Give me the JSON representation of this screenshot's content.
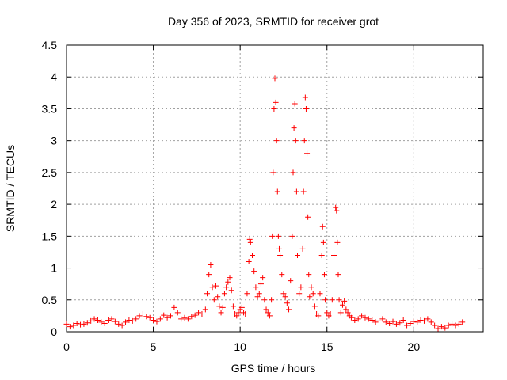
{
  "chart_data": {
    "type": "scatter",
    "title": "Day 356 of 2023, SRMTID for receiver grot",
    "xlabel": "GPS time / hours",
    "ylabel": "SRMTID / TECUs",
    "xlim": [
      0,
      24
    ],
    "ylim": [
      0,
      4.5
    ],
    "x_ticks": [
      0,
      5,
      10,
      15,
      20
    ],
    "x_tick_labels": [
      "0",
      "5",
      "10",
      "15",
      "20"
    ],
    "y_ticks": [
      0,
      0.5,
      1,
      1.5,
      2,
      2.5,
      3,
      3.5,
      4,
      4.5
    ],
    "y_tick_labels": [
      "0",
      "0.5",
      "1",
      "1.5",
      "2",
      "2.5",
      "3",
      "3.5",
      "4",
      "4.5"
    ],
    "grid": true,
    "marker": "+",
    "marker_color": "#ff0000",
    "series": [
      {
        "name": "SRMTID",
        "points": [
          [
            0.0,
            0.12
          ],
          [
            0.2,
            0.08
          ],
          [
            0.4,
            0.1
          ],
          [
            0.6,
            0.13
          ],
          [
            0.8,
            0.11
          ],
          [
            1.0,
            0.12
          ],
          [
            1.2,
            0.14
          ],
          [
            1.4,
            0.17
          ],
          [
            1.6,
            0.2
          ],
          [
            1.8,
            0.18
          ],
          [
            2.0,
            0.15
          ],
          [
            2.2,
            0.13
          ],
          [
            2.4,
            0.18
          ],
          [
            2.6,
            0.2
          ],
          [
            2.8,
            0.16
          ],
          [
            3.0,
            0.12
          ],
          [
            3.2,
            0.1
          ],
          [
            3.4,
            0.15
          ],
          [
            3.6,
            0.18
          ],
          [
            3.8,
            0.17
          ],
          [
            4.0,
            0.2
          ],
          [
            4.2,
            0.25
          ],
          [
            4.4,
            0.28
          ],
          [
            4.6,
            0.24
          ],
          [
            4.8,
            0.22
          ],
          [
            5.0,
            0.18
          ],
          [
            5.2,
            0.16
          ],
          [
            5.4,
            0.2
          ],
          [
            5.6,
            0.26
          ],
          [
            5.8,
            0.22
          ],
          [
            6.0,
            0.25
          ],
          [
            6.2,
            0.38
          ],
          [
            6.4,
            0.3
          ],
          [
            6.6,
            0.2
          ],
          [
            6.8,
            0.22
          ],
          [
            7.0,
            0.2
          ],
          [
            7.2,
            0.24
          ],
          [
            7.4,
            0.26
          ],
          [
            7.6,
            0.3
          ],
          [
            7.8,
            0.28
          ],
          [
            8.0,
            0.35
          ],
          [
            8.1,
            0.6
          ],
          [
            8.2,
            0.9
          ],
          [
            8.3,
            1.05
          ],
          [
            8.4,
            0.7
          ],
          [
            8.5,
            0.5
          ],
          [
            8.6,
            0.72
          ],
          [
            8.7,
            0.55
          ],
          [
            8.8,
            0.4
          ],
          [
            8.9,
            0.3
          ],
          [
            9.0,
            0.38
          ],
          [
            9.1,
            0.6
          ],
          [
            9.2,
            0.7
          ],
          [
            9.3,
            0.78
          ],
          [
            9.4,
            0.85
          ],
          [
            9.5,
            0.65
          ],
          [
            9.6,
            0.4
          ],
          [
            9.7,
            0.28
          ],
          [
            9.8,
            0.25
          ],
          [
            9.9,
            0.3
          ],
          [
            10.0,
            0.35
          ],
          [
            10.1,
            0.38
          ],
          [
            10.2,
            0.3
          ],
          [
            10.3,
            0.28
          ],
          [
            10.4,
            0.6
          ],
          [
            10.5,
            1.1
          ],
          [
            10.55,
            1.45
          ],
          [
            10.6,
            1.4
          ],
          [
            10.7,
            1.2
          ],
          [
            10.8,
            0.95
          ],
          [
            10.9,
            0.7
          ],
          [
            11.0,
            0.55
          ],
          [
            11.1,
            0.6
          ],
          [
            11.2,
            0.75
          ],
          [
            11.3,
            0.85
          ],
          [
            11.4,
            0.5
          ],
          [
            11.5,
            0.35
          ],
          [
            11.6,
            0.3
          ],
          [
            11.7,
            0.25
          ],
          [
            11.8,
            0.5
          ],
          [
            11.85,
            1.5
          ],
          [
            11.9,
            2.5
          ],
          [
            11.95,
            3.5
          ],
          [
            12.0,
            3.98
          ],
          [
            12.05,
            3.6
          ],
          [
            12.1,
            3.0
          ],
          [
            12.15,
            2.2
          ],
          [
            12.2,
            1.5
          ],
          [
            12.25,
            1.3
          ],
          [
            12.3,
            1.2
          ],
          [
            12.4,
            0.9
          ],
          [
            12.5,
            0.6
          ],
          [
            12.6,
            0.55
          ],
          [
            12.7,
            0.45
          ],
          [
            12.8,
            0.35
          ],
          [
            12.9,
            0.8
          ],
          [
            13.0,
            1.5
          ],
          [
            13.05,
            2.5
          ],
          [
            13.1,
            3.2
          ],
          [
            13.15,
            3.58
          ],
          [
            13.2,
            3.0
          ],
          [
            13.25,
            2.2
          ],
          [
            13.3,
            1.2
          ],
          [
            13.4,
            0.6
          ],
          [
            13.5,
            0.7
          ],
          [
            13.6,
            1.3
          ],
          [
            13.65,
            2.2
          ],
          [
            13.7,
            3.0
          ],
          [
            13.75,
            3.68
          ],
          [
            13.8,
            3.5
          ],
          [
            13.85,
            2.8
          ],
          [
            13.9,
            1.8
          ],
          [
            13.95,
            0.9
          ],
          [
            14.0,
            0.55
          ],
          [
            14.1,
            0.7
          ],
          [
            14.2,
            0.6
          ],
          [
            14.3,
            0.4
          ],
          [
            14.4,
            0.28
          ],
          [
            14.5,
            0.25
          ],
          [
            14.6,
            0.6
          ],
          [
            14.7,
            1.2
          ],
          [
            14.75,
            1.65
          ],
          [
            14.8,
            1.4
          ],
          [
            14.85,
            0.9
          ],
          [
            14.9,
            0.5
          ],
          [
            15.0,
            0.3
          ],
          [
            15.1,
            0.25
          ],
          [
            15.2,
            0.28
          ],
          [
            15.3,
            0.5
          ],
          [
            15.4,
            1.2
          ],
          [
            15.5,
            1.95
          ],
          [
            15.55,
            1.9
          ],
          [
            15.6,
            1.4
          ],
          [
            15.65,
            0.9
          ],
          [
            15.7,
            0.5
          ],
          [
            15.8,
            0.3
          ],
          [
            15.9,
            0.42
          ],
          [
            16.0,
            0.48
          ],
          [
            16.1,
            0.35
          ],
          [
            16.2,
            0.3
          ],
          [
            16.3,
            0.25
          ],
          [
            16.4,
            0.22
          ],
          [
            16.6,
            0.18
          ],
          [
            16.8,
            0.2
          ],
          [
            17.0,
            0.25
          ],
          [
            17.2,
            0.22
          ],
          [
            17.4,
            0.2
          ],
          [
            17.6,
            0.18
          ],
          [
            17.8,
            0.15
          ],
          [
            18.0,
            0.17
          ],
          [
            18.2,
            0.2
          ],
          [
            18.4,
            0.15
          ],
          [
            18.6,
            0.13
          ],
          [
            18.8,
            0.16
          ],
          [
            19.0,
            0.12
          ],
          [
            19.2,
            0.14
          ],
          [
            19.4,
            0.18
          ],
          [
            19.6,
            0.1
          ],
          [
            19.8,
            0.13
          ],
          [
            20.0,
            0.16
          ],
          [
            20.2,
            0.15
          ],
          [
            20.4,
            0.18
          ],
          [
            20.6,
            0.17
          ],
          [
            20.8,
            0.2
          ],
          [
            21.0,
            0.15
          ],
          [
            21.2,
            0.1
          ],
          [
            21.4,
            0.05
          ],
          [
            21.6,
            0.08
          ],
          [
            21.8,
            0.06
          ],
          [
            22.0,
            0.1
          ],
          [
            22.2,
            0.12
          ],
          [
            22.4,
            0.1
          ],
          [
            22.6,
            0.12
          ],
          [
            22.8,
            0.15
          ]
        ]
      }
    ]
  }
}
